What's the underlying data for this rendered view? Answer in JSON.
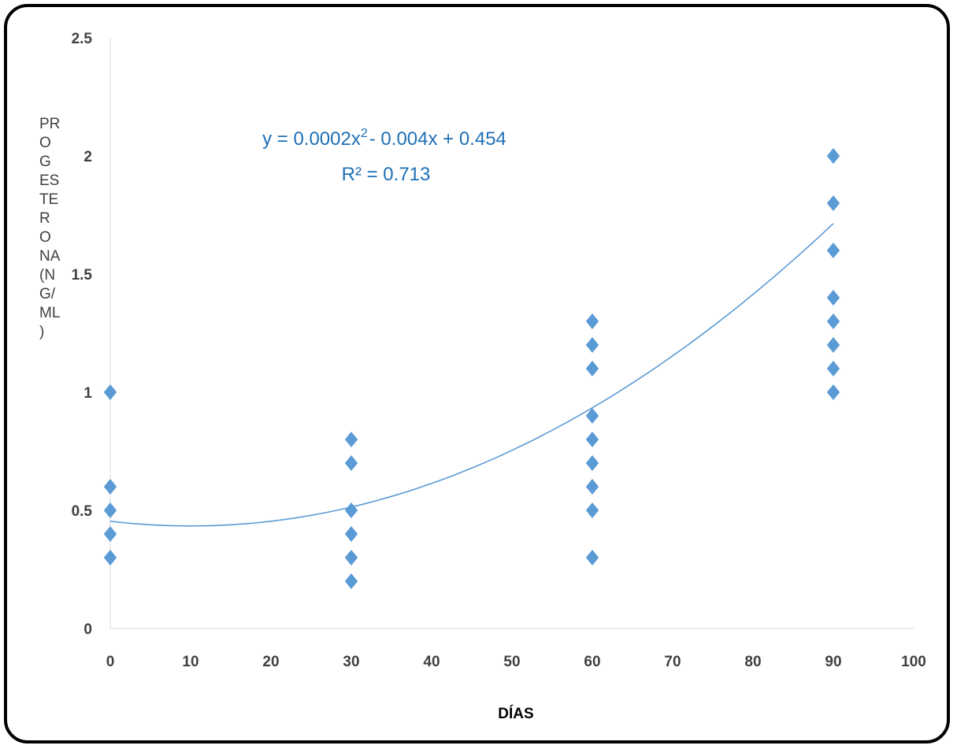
{
  "chart_data": {
    "type": "scatter",
    "xlabel": "DÍAS",
    "ylabel": "PROGESTERONA(NG/ML)",
    "ylabel_lines": [
      "PR",
      "O",
      "G",
      "ES",
      "TE",
      "R",
      "O",
      "NA",
      "(N",
      "G/",
      "ML",
      ")"
    ],
    "xlim": [
      0,
      100
    ],
    "ylim": [
      0,
      2.5
    ],
    "x_ticks": [
      "0",
      "10",
      "20",
      "30",
      "40",
      "50",
      "60",
      "70",
      "80",
      "90",
      "100"
    ],
    "y_ticks": [
      "0",
      "0.5",
      "1",
      "1.5",
      "2",
      "2.5"
    ],
    "grid": false,
    "marker": "diamond",
    "series_color": "#5b9bd5",
    "trend_color": "#5b9bd5",
    "equation_color": "#1f6fb5",
    "points": [
      [
        0,
        1.0
      ],
      [
        0,
        0.6
      ],
      [
        0,
        0.5
      ],
      [
        0,
        0.4
      ],
      [
        0,
        0.3
      ],
      [
        30,
        0.8
      ],
      [
        30,
        0.7
      ],
      [
        30,
        0.5
      ],
      [
        30,
        0.4
      ],
      [
        30,
        0.3
      ],
      [
        30,
        0.2
      ],
      [
        60,
        1.3
      ],
      [
        60,
        1.2
      ],
      [
        60,
        1.1
      ],
      [
        60,
        0.9
      ],
      [
        60,
        0.8
      ],
      [
        60,
        0.7
      ],
      [
        60,
        0.6
      ],
      [
        60,
        0.5
      ],
      [
        60,
        0.3
      ],
      [
        90,
        2.0
      ],
      [
        90,
        1.8
      ],
      [
        90,
        1.6
      ],
      [
        90,
        1.4
      ],
      [
        90,
        1.3
      ],
      [
        90,
        1.2
      ],
      [
        90,
        1.1
      ],
      [
        90,
        1.0
      ]
    ],
    "trendline": {
      "type": "polynomial",
      "coefficients": [
        0.454,
        -0.004,
        0.0002
      ],
      "x_range": [
        0,
        90
      ],
      "equation_main": "y = 0.0002x",
      "equation_sup": "2",
      "equation_rest": "- 0.004x + 0.454",
      "r2_label": "R² = 0.713"
    }
  }
}
